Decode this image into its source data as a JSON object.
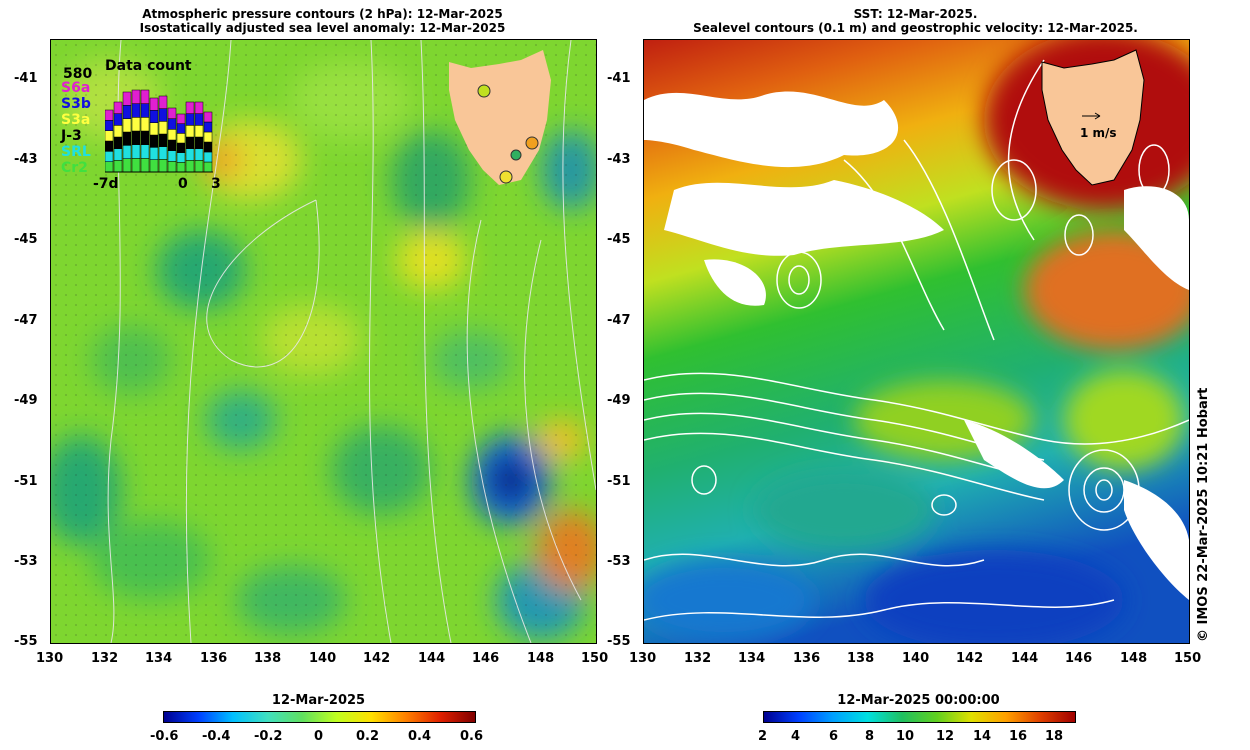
{
  "left_panel": {
    "title_line1": "Atmospheric pressure contours (2 hPa): 12-Mar-2025",
    "title_line2": "Isostatically adjusted sea level anomaly: 12-Mar-2025",
    "colorbar_title": "12-Mar-2025",
    "colorbar_ticks": [
      "-0.6",
      "-0.4",
      "-0.2",
      "0",
      "0.2",
      "0.4",
      "0.6"
    ],
    "inset": {
      "title": "Data count",
      "max_count": "580",
      "missions": [
        "S6a",
        "S3b",
        "S3a",
        "J-3",
        "SRL",
        "Cr2"
      ],
      "mission_colors": [
        "#e020d0",
        "#1010e0",
        "#ffff40",
        "#000000",
        "#20e0e0",
        "#40e040"
      ],
      "x_labels": [
        "-7d",
        "0",
        "3"
      ]
    }
  },
  "right_panel": {
    "title_line1": "SST: 12-Mar-2025.",
    "title_line2": "Sealevel contours (0.1 m) and geostrophic velocity: 12-Mar-2025.",
    "velocity_scale": "1 m/s",
    "colorbar_title": "12-Mar-2025 00:00:00",
    "colorbar_ticks": [
      "2",
      "4",
      "6",
      "8",
      "10",
      "12",
      "14",
      "16",
      "18"
    ]
  },
  "axes": {
    "lat_ticks": [
      "-41",
      "-43",
      "-45",
      "-47",
      "-49",
      "-51",
      "-53",
      "-55"
    ],
    "lon_ticks": [
      "130",
      "132",
      "134",
      "136",
      "138",
      "140",
      "142",
      "144",
      "146",
      "148",
      "150"
    ]
  },
  "credit": "© IMOS 22-Mar-2025 10:21 Hobart",
  "colors": {
    "land": "#f9c698",
    "sla_bg": "#7ed630",
    "sst_bg": "#20b040"
  }
}
